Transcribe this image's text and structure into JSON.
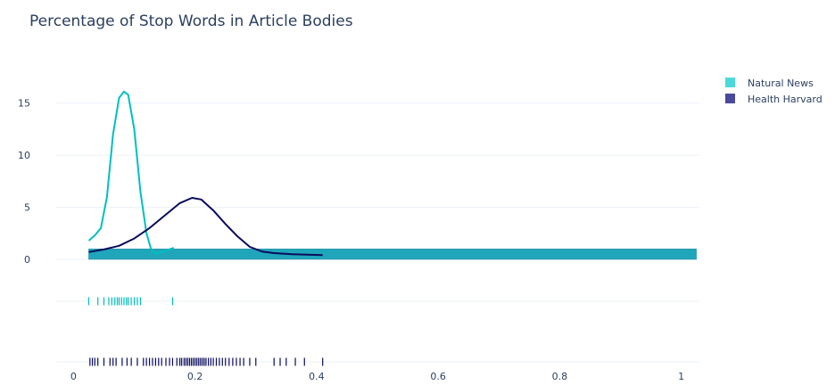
{
  "chart_data": {
    "type": "distplot",
    "title": "Percentage of Stop Words in Article Bodies",
    "xlim": [
      -0.03,
      1.03
    ],
    "ylim": [
      -1.4,
      17.0
    ],
    "x_ticks": [
      0,
      0.2,
      0.4,
      0.6,
      0.8,
      1
    ],
    "x_tick_labels": [
      "0",
      "0.2",
      "0.4",
      "0.6",
      "0.8",
      "1"
    ],
    "y_ticks": [
      0,
      5,
      10,
      15
    ],
    "y_tick_labels": [
      "0",
      "5",
      "10",
      "15"
    ],
    "legend_position": "top-right",
    "series": [
      {
        "name": "Natural News",
        "color": "#00bfbf",
        "legend_color": "#4cd9d9",
        "histogram": {
          "x_start": 0.025,
          "x_end": 1.025,
          "height": 1.0
        },
        "kde": {
          "x": [
            0.025,
            0.035,
            0.045,
            0.055,
            0.065,
            0.075,
            0.083,
            0.09,
            0.1,
            0.11,
            0.12,
            0.128,
            0.135,
            0.145,
            0.155,
            0.165
          ],
          "y": [
            1.8,
            2.3,
            3.0,
            6.0,
            12.0,
            15.5,
            16.1,
            15.8,
            12.5,
            6.5,
            2.5,
            0.9,
            0.55,
            0.7,
            0.9,
            1.1
          ]
        },
        "rug": [
          0.025,
          0.04,
          0.05,
          0.058,
          0.063,
          0.068,
          0.072,
          0.075,
          0.079,
          0.083,
          0.087,
          0.09,
          0.095,
          0.1,
          0.105,
          0.11,
          0.163
        ]
      },
      {
        "name": "Health Harvard",
        "color": "#0b0b5c",
        "legend_color": "#4a4a9a",
        "kde": {
          "x": [
            0.025,
            0.05,
            0.075,
            0.1,
            0.125,
            0.15,
            0.175,
            0.195,
            0.21,
            0.23,
            0.25,
            0.27,
            0.29,
            0.31,
            0.33,
            0.36,
            0.41
          ],
          "y": [
            0.7,
            0.95,
            1.3,
            2.0,
            3.0,
            4.2,
            5.4,
            5.9,
            5.75,
            4.7,
            3.4,
            2.2,
            1.2,
            0.75,
            0.6,
            0.5,
            0.4
          ]
        },
        "rug": [
          0.027,
          0.031,
          0.035,
          0.04,
          0.05,
          0.06,
          0.065,
          0.07,
          0.08,
          0.088,
          0.095,
          0.105,
          0.115,
          0.12,
          0.125,
          0.13,
          0.135,
          0.14,
          0.145,
          0.152,
          0.158,
          0.163,
          0.17,
          0.175,
          0.178,
          0.182,
          0.185,
          0.188,
          0.191,
          0.194,
          0.197,
          0.2,
          0.203,
          0.206,
          0.209,
          0.212,
          0.215,
          0.218,
          0.222,
          0.226,
          0.23,
          0.235,
          0.24,
          0.245,
          0.25,
          0.256,
          0.262,
          0.268,
          0.274,
          0.28,
          0.29,
          0.3,
          0.33,
          0.34,
          0.35,
          0.365,
          0.38,
          0.41
        ]
      }
    ]
  }
}
